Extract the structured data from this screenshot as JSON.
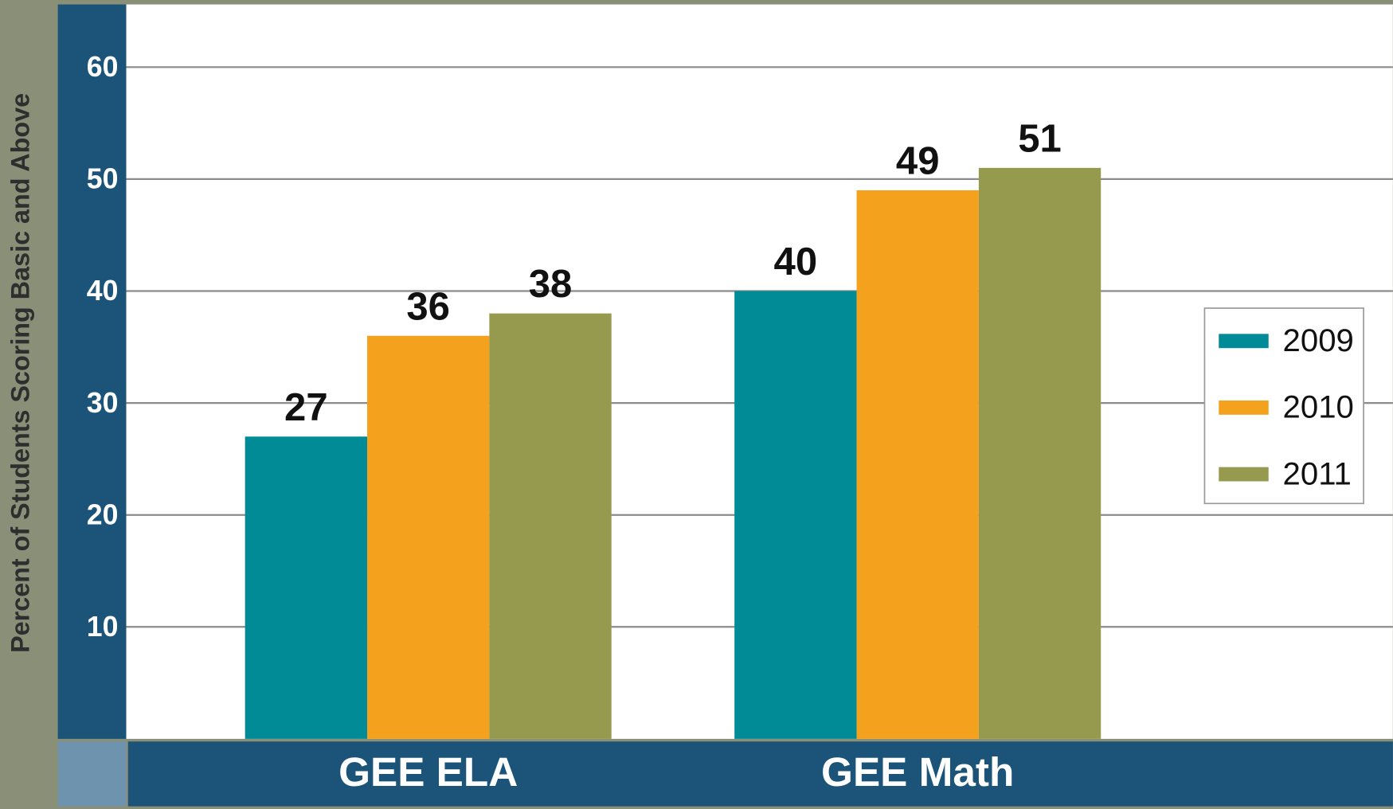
{
  "chart_data": {
    "type": "bar",
    "y_label": "Percent of Students Scoring Basic and Above",
    "categories": [
      "GEE ELA",
      "GEE Math"
    ],
    "series": [
      {
        "name": "2009",
        "color": "#008b96",
        "values": [
          27,
          40
        ]
      },
      {
        "name": "2010",
        "color": "#f4a11d",
        "values": [
          36,
          49
        ]
      },
      {
        "name": "2011",
        "color": "#959a4e",
        "values": [
          38,
          51
        ]
      }
    ],
    "ylim": [
      0,
      65.6
    ],
    "yticks": [
      10,
      20,
      30,
      40,
      50,
      60
    ],
    "grid": true,
    "legend": "right"
  }
}
